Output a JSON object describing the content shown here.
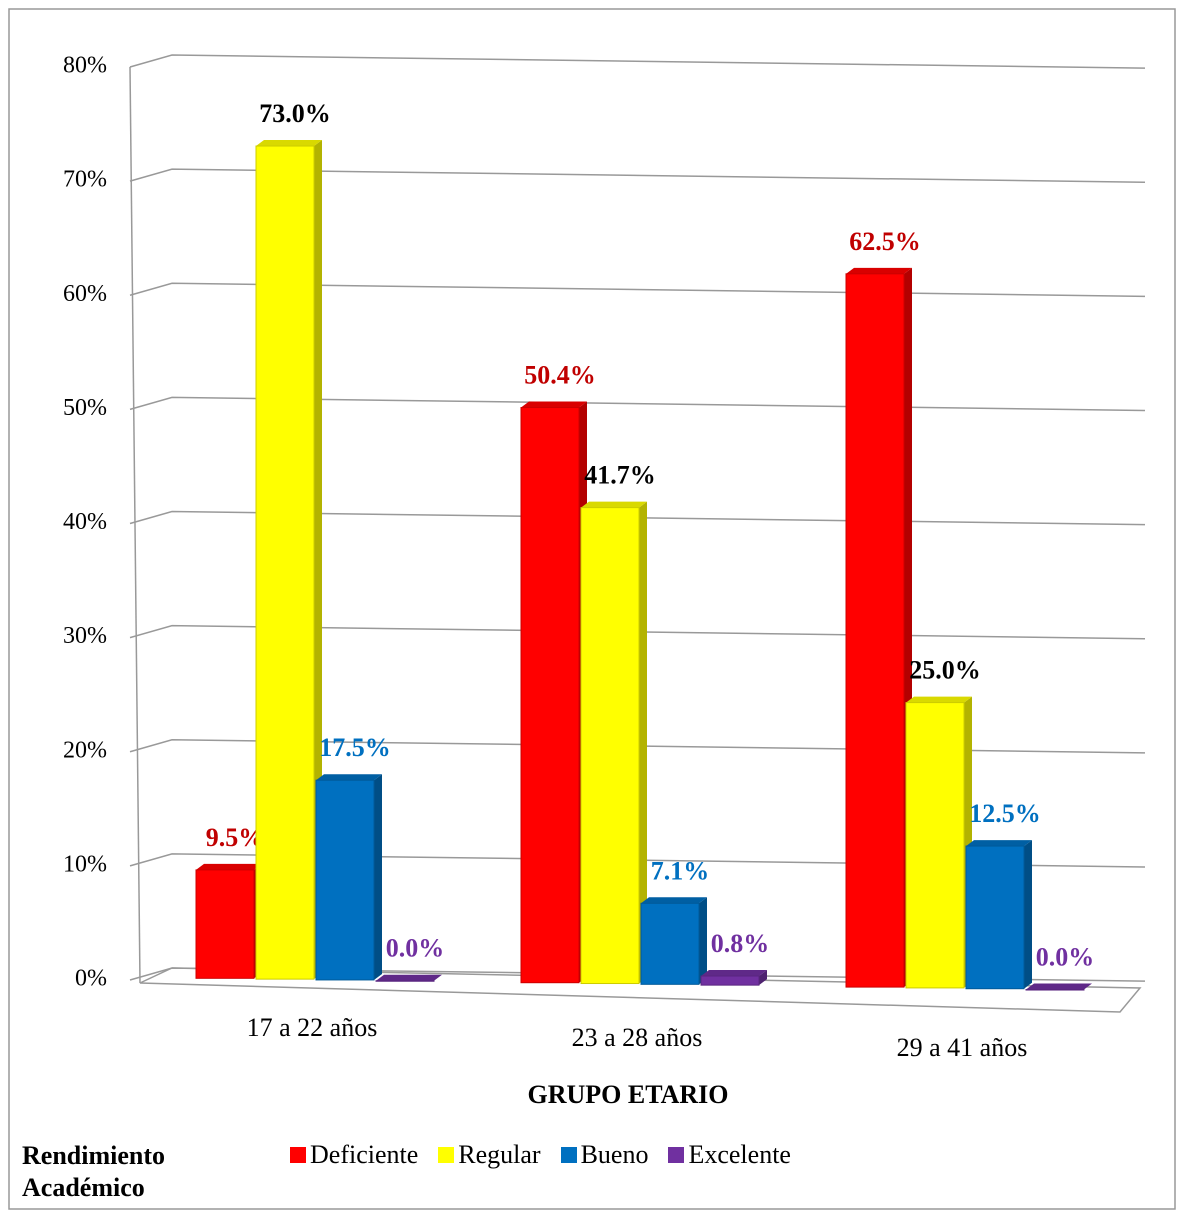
{
  "chart_data": {
    "type": "bar3d",
    "categories": [
      "17 a 22 años",
      "23 a 28 años",
      "29 a 41 años"
    ],
    "x_label": "GRUPO ETARIO",
    "legend_title": "Rendimiento Académico",
    "series": [
      {
        "name": "Deficiente",
        "color": "#ff0000",
        "label_color": "#c00000",
        "values": [
          9.5,
          50.4,
          62.5
        ],
        "value_labels": [
          "9.5%",
          "50.4%",
          "62.5%"
        ]
      },
      {
        "name": "Regular",
        "color": "#ffff00",
        "label_color": "#000000",
        "values": [
          73.0,
          41.7,
          25.0
        ],
        "value_labels": [
          "73.0%",
          "41.7%",
          "25.0%"
        ]
      },
      {
        "name": "Bueno",
        "color": "#0070c0",
        "label_color": "#0070c0",
        "values": [
          17.5,
          7.1,
          12.5
        ],
        "value_labels": [
          "17.5%",
          "7.1%",
          "12.5%"
        ]
      },
      {
        "name": "Excelente",
        "color": "#7030a0",
        "label_color": "#7030a0",
        "values": [
          0.0,
          0.8,
          0.0
        ],
        "value_labels": [
          "0.0%",
          "0.8%",
          "0.0%"
        ]
      }
    ],
    "ylim": [
      0,
      80
    ],
    "yticks": [
      {
        "value": 0,
        "label": "0%"
      },
      {
        "value": 10,
        "label": "10%"
      },
      {
        "value": 20,
        "label": "20%"
      },
      {
        "value": 30,
        "label": "30%"
      },
      {
        "value": 40,
        "label": "40%"
      },
      {
        "value": 50,
        "label": "50%"
      },
      {
        "value": 60,
        "label": "60%"
      },
      {
        "value": 70,
        "label": "70%"
      },
      {
        "value": 80,
        "label": "80%"
      }
    ],
    "grid": true,
    "legend": "bottom"
  }
}
